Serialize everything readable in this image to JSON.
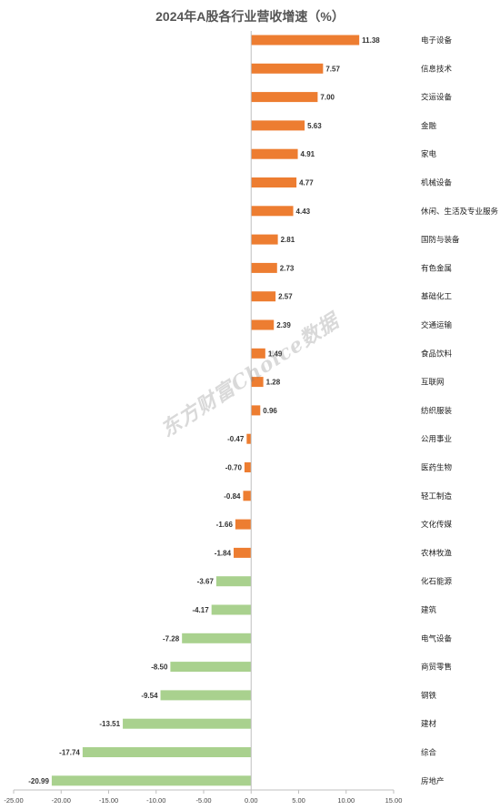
{
  "chart_data": {
    "type": "bar",
    "orientation": "horizontal",
    "title": "2024年A股各行业营收增速（%）",
    "categories": [
      "电子设备",
      "信息技术",
      "交运设备",
      "金融",
      "家电",
      "机械设备",
      "休闲、生活及专业服务",
      "国防与装备",
      "有色金属",
      "基础化工",
      "交通运输",
      "食品饮料",
      "互联网",
      "纺织服装",
      "公用事业",
      "医药生物",
      "轻工制造",
      "文化传媒",
      "农林牧渔",
      "化石能源",
      "建筑",
      "电气设备",
      "商贸零售",
      "钢铁",
      "建材",
      "综合",
      "房地产"
    ],
    "values": [
      11.38,
      7.57,
      7.0,
      5.63,
      4.91,
      4.77,
      4.43,
      2.81,
      2.73,
      2.57,
      2.39,
      1.49,
      1.28,
      0.96,
      -0.47,
      -0.7,
      -0.84,
      -1.66,
      -1.84,
      -3.67,
      -4.17,
      -7.28,
      -8.5,
      -9.54,
      -13.51,
      -17.74,
      -20.99
    ],
    "value_labels": [
      "11.38",
      "7.57",
      "7.00",
      "5.63",
      "4.91",
      "4.77",
      "4.43",
      "2.81",
      "2.73",
      "2.57",
      "2.39",
      "1.49",
      "1.28",
      "0.96",
      "-0.47",
      "-0.70",
      "-0.84",
      "-1.66",
      "-1.84",
      "-3.67",
      "-4.17",
      "-7.28",
      "-8.50",
      "-9.54",
      "-13.51",
      "-17.74",
      "-20.99"
    ],
    "xlim": [
      -25,
      15
    ],
    "xticks": [
      "-25.00",
      "-20.00",
      "-15.00",
      "-10.00",
      "-5.00",
      "0.00",
      "5.00",
      "10.00",
      "15.00"
    ],
    "xtick_values": [
      -25,
      -20,
      -15,
      -10,
      -5,
      0,
      5,
      10,
      15
    ],
    "grid": false,
    "legend": "none",
    "colors": {
      "orange": "#ED7D31",
      "green": "#A9D18E"
    },
    "green_from_index": 19
  },
  "watermark": "东方财富Choice数据"
}
